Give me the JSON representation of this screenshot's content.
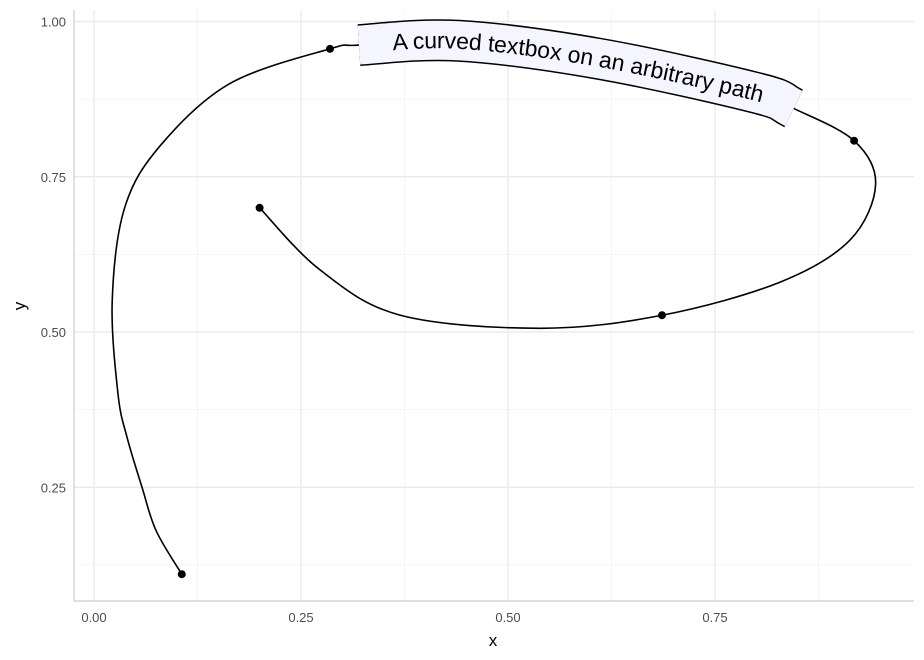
{
  "chart_data": {
    "type": "line",
    "title": "",
    "xlabel": "x",
    "ylabel": "y",
    "xlim": [
      -0.025,
      0.99
    ],
    "ylim": [
      0.065,
      1.02
    ],
    "x_ticks": [
      "0.00",
      "0.25",
      "0.50",
      "0.75"
    ],
    "y_ticks": [
      "0.25",
      "0.50",
      "0.75",
      "1.00"
    ],
    "grid": true,
    "points": [
      {
        "x": 0.106,
        "y": 0.11
      },
      {
        "x": 0.285,
        "y": 0.956
      },
      {
        "x": 0.918,
        "y": 0.808
      },
      {
        "x": 0.686,
        "y": 0.527
      },
      {
        "x": 0.2,
        "y": 0.7
      }
    ],
    "curve": [
      [
        0.106,
        0.11
      ],
      [
        0.075,
        0.18
      ],
      [
        0.058,
        0.25
      ],
      [
        0.04,
        0.33
      ],
      [
        0.029,
        0.4
      ],
      [
        0.022,
        0.55
      ],
      [
        0.037,
        0.7
      ],
      [
        0.08,
        0.8
      ],
      [
        0.164,
        0.9
      ],
      [
        0.285,
        0.956
      ],
      [
        0.32,
        0.962
      ],
      [
        0.44,
        0.969
      ],
      [
        0.61,
        0.94
      ],
      [
        0.8,
        0.885
      ],
      [
        0.845,
        0.86
      ],
      [
        0.918,
        0.808
      ],
      [
        0.944,
        0.738
      ],
      [
        0.913,
        0.648
      ],
      [
        0.828,
        0.58
      ],
      [
        0.686,
        0.527
      ],
      [
        0.539,
        0.506
      ],
      [
        0.37,
        0.527
      ],
      [
        0.273,
        0.6
      ],
      [
        0.2,
        0.7
      ]
    ],
    "annotation": {
      "text": "A curved textbox on an arbitrary path",
      "fill": "#f5f5ff",
      "border": "#000000"
    },
    "colors": {
      "line": "#000000",
      "grid": "#ebebeb",
      "axis": "#cccccc"
    }
  }
}
